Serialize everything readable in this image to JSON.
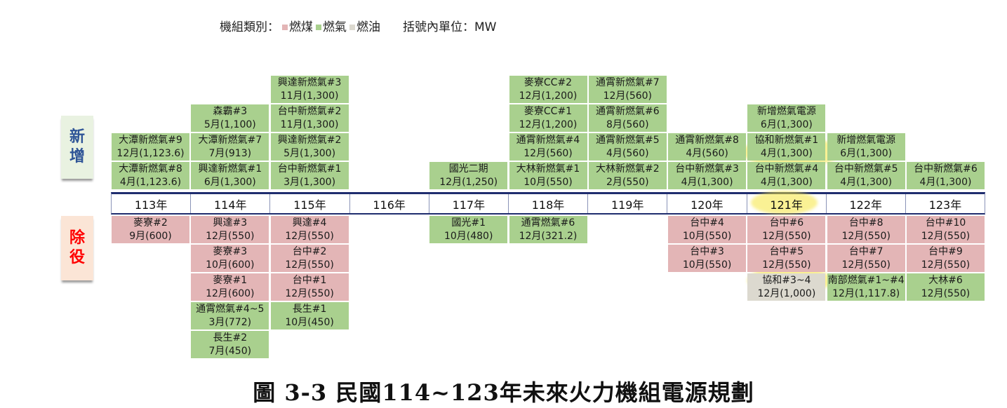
{
  "legend": {
    "label": "機組類別：",
    "types": [
      {
        "key": "coal",
        "label": "燃煤",
        "color": "#e3b5b6"
      },
      {
        "key": "gas",
        "label": "燃氣",
        "color": "#a9d08e"
      },
      {
        "key": "oil",
        "label": "燃油",
        "color": "#dcd9cf"
      }
    ],
    "unit": "括號內單位：MW"
  },
  "side_labels": {
    "added": "新增",
    "retired": "除役"
  },
  "highlight_color": "#f5e63c",
  "columns": [
    {
      "year": "113年",
      "added": [
        {
          "name": "大潭新燃氣#8",
          "date": "4月(1,123.6)",
          "type": "gas"
        },
        {
          "name": "大潭新燃氣#9",
          "date": "12月(1,123.6)",
          "type": "gas"
        }
      ],
      "retired": [
        {
          "name": "麥寮#2",
          "date": "9月(600)",
          "type": "coal"
        }
      ]
    },
    {
      "year": "114年",
      "added": [
        {
          "name": "興達新燃氣#1",
          "date": "6月(1,300)",
          "type": "gas"
        },
        {
          "name": "大潭新燃氣#7",
          "date": "7月(913)",
          "type": "gas"
        },
        {
          "name": "森霸#3",
          "date": "5月(1,100)",
          "type": "gas"
        }
      ],
      "retired": [
        {
          "name": "興達#3",
          "date": "12月(550)",
          "type": "coal"
        },
        {
          "name": "麥寮#3",
          "date": "10月(600)",
          "type": "coal"
        },
        {
          "name": "麥寮#1",
          "date": "12月(600)",
          "type": "coal"
        },
        {
          "name": "通霄燃氣#4~5",
          "date": "3月(772)",
          "type": "gas"
        },
        {
          "name": "長生#2",
          "date": "7月(450)",
          "type": "gas"
        }
      ]
    },
    {
      "year": "115年",
      "added": [
        {
          "name": "台中新燃氣#1",
          "date": "3月(1,300)",
          "type": "gas"
        },
        {
          "name": "興達新燃氣#2",
          "date": "5月(1,300)",
          "type": "gas"
        },
        {
          "name": "台中新燃氣#2",
          "date": "11月(1,300)",
          "type": "gas"
        },
        {
          "name": "興達新燃氣#3",
          "date": "11月(1,300)",
          "type": "gas"
        }
      ],
      "retired": [
        {
          "name": "興達#4",
          "date": "12月(550)",
          "type": "coal"
        },
        {
          "name": "台中#2",
          "date": "12月(550)",
          "type": "coal"
        },
        {
          "name": "台中#1",
          "date": "12月(550)",
          "type": "coal"
        },
        {
          "name": "長生#1",
          "date": "10月(450)",
          "type": "gas"
        }
      ]
    },
    {
      "year": "116年",
      "added": [],
      "retired": []
    },
    {
      "year": "117年",
      "added": [
        {
          "name": "國光二期",
          "date": "12月(1,250)",
          "type": "gas"
        }
      ],
      "retired": [
        {
          "name": "國光#1",
          "date": "10月(480)",
          "type": "gas"
        }
      ]
    },
    {
      "year": "118年",
      "added": [
        {
          "name": "大林新燃氣#1",
          "date": "10月(550)",
          "type": "gas"
        },
        {
          "name": "通霄新燃氣#4",
          "date": "12月(560)",
          "type": "gas"
        },
        {
          "name": "麥寮CC#1",
          "date": "12月(1,200)",
          "type": "gas"
        },
        {
          "name": "麥寮CC#2",
          "date": "12月(1,200)",
          "type": "gas"
        }
      ],
      "retired": [
        {
          "name": "通霄燃氣#6",
          "date": "12月(321.2)",
          "type": "gas"
        }
      ]
    },
    {
      "year": "119年",
      "added": [
        {
          "name": "大林新燃氣#2",
          "date": "2月(550)",
          "type": "gas"
        },
        {
          "name": "通霄新燃氣#5",
          "date": "4月(560)",
          "type": "gas"
        },
        {
          "name": "通霄新燃氣#6",
          "date": "8月(560)",
          "type": "gas"
        },
        {
          "name": "通霄新燃氣#7",
          "date": "12月(560)",
          "type": "gas"
        }
      ],
      "retired": []
    },
    {
      "year": "120年",
      "added": [
        {
          "name": "台中新燃氣#3",
          "date": "4月(1,300)",
          "type": "gas"
        },
        {
          "name": "通霄新燃氣#8",
          "date": "4月(560)",
          "type": "gas"
        }
      ],
      "retired": [
        {
          "name": "台中#4",
          "date": "10月(550)",
          "type": "coal"
        },
        {
          "name": "台中#3",
          "date": "10月(550)",
          "type": "coal"
        }
      ]
    },
    {
      "year": "121年",
      "added": [
        {
          "name": "台中新燃氣#4",
          "date": "4月(1,300)",
          "type": "gas"
        },
        {
          "name": "協和新燃氣#1",
          "date": "4月(1,300)",
          "type": "gas"
        },
        {
          "name": "新增燃氣電源",
          "date": "6月(1,300)",
          "type": "gas"
        }
      ],
      "retired": [
        {
          "name": "台中#6",
          "date": "12月(550)",
          "type": "coal"
        },
        {
          "name": "台中#5",
          "date": "12月(550)",
          "type": "coal"
        },
        {
          "name": "協和#3~4",
          "date": "12月(1,000)",
          "type": "oil"
        }
      ]
    },
    {
      "year": "122年",
      "added": [
        {
          "name": "台中新燃氣#5",
          "date": "4月(1,300)",
          "type": "gas"
        },
        {
          "name": "新增燃氣電源",
          "date": "6月(1,300)",
          "type": "gas"
        }
      ],
      "retired": [
        {
          "name": "台中#8",
          "date": "12月(550)",
          "type": "coal"
        },
        {
          "name": "台中#7",
          "date": "12月(550)",
          "type": "coal"
        },
        {
          "name": "南部燃氣#1~#4",
          "date": "12月(1,117.8)",
          "type": "gas"
        }
      ]
    },
    {
      "year": "123年",
      "added": [
        {
          "name": "台中新燃氣#6",
          "date": "4月(1,300)",
          "type": "gas"
        }
      ],
      "retired": [
        {
          "name": "台中#10",
          "date": "12月(550)",
          "type": "coal"
        },
        {
          "name": "台中#9",
          "date": "12月(550)",
          "type": "coal"
        },
        {
          "name": "大林#6",
          "date": "12月(550)",
          "type": "gas"
        }
      ]
    }
  ],
  "caption": "圖 3-3  民國114~123年未來火力機組電源規劃"
}
